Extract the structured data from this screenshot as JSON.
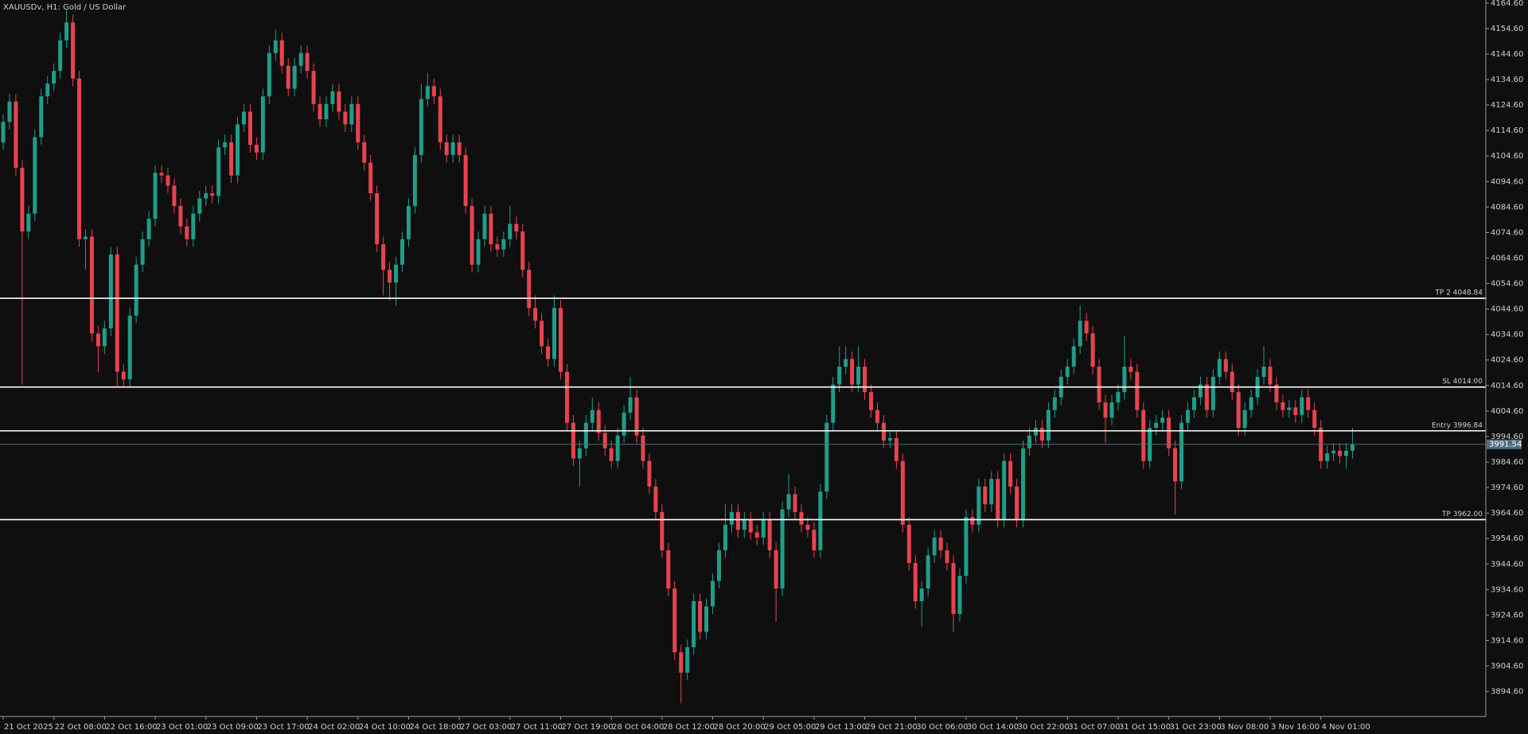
{
  "chart_data": {
    "type": "candlestick",
    "title": "XAUUSDv, H1:  Gold / US Dollar",
    "up_color": "#1f9e89",
    "down_color": "#e8434f",
    "level_color": "#ffffff",
    "last_price_color": "#4f6f7f",
    "ylim": [
      3884.8,
      4165.8
    ],
    "yticks": [
      {
        "value": 3894.6,
        "label": "3894.60"
      },
      {
        "value": 3904.6,
        "label": "3904.60"
      },
      {
        "value": 3914.6,
        "label": "3914.60"
      },
      {
        "value": 3924.6,
        "label": "3924.60"
      },
      {
        "value": 3934.6,
        "label": "3934.60"
      },
      {
        "value": 3944.6,
        "label": "3944.60"
      },
      {
        "value": 3954.6,
        "label": "3954.60"
      },
      {
        "value": 3964.6,
        "label": "3964.60"
      },
      {
        "value": 3974.6,
        "label": "3974.60"
      },
      {
        "value": 3984.6,
        "label": "3984.60"
      },
      {
        "value": 3994.6,
        "label": "3994.60"
      },
      {
        "value": 4004.6,
        "label": "4004.60"
      },
      {
        "value": 4014.6,
        "label": "4014.60"
      },
      {
        "value": 4024.6,
        "label": "4024.60"
      },
      {
        "value": 4034.6,
        "label": "4034.60"
      },
      {
        "value": 4044.6,
        "label": "4044.60"
      },
      {
        "value": 4054.6,
        "label": "4054.60"
      },
      {
        "value": 4064.6,
        "label": "4064.60"
      },
      {
        "value": 4074.6,
        "label": "4074.60"
      },
      {
        "value": 4084.6,
        "label": "4084.60"
      },
      {
        "value": 4094.6,
        "label": "4094.60"
      },
      {
        "value": 4104.6,
        "label": "4104.60"
      },
      {
        "value": 4114.6,
        "label": "4114.60"
      },
      {
        "value": 4124.6,
        "label": "4124.60"
      },
      {
        "value": 4134.6,
        "label": "4134.60"
      },
      {
        "value": 4144.6,
        "label": "4144.60"
      },
      {
        "value": 4154.6,
        "label": "4154.60"
      },
      {
        "value": 4164.6,
        "label": "4164.60"
      }
    ],
    "levels": [
      {
        "label": "TP 2 4048.84",
        "value": 4048.84
      },
      {
        "label": "SL 4014.00",
        "value": 4014.0
      },
      {
        "label": "Entry 3996.84",
        "value": 3996.84
      },
      {
        "label": "TP 3962.00",
        "value": 3962.0
      }
    ],
    "last_price": 3991.54,
    "categories": [
      "21 Oct 2025",
      null,
      null,
      null,
      null,
      null,
      null,
      null,
      "22 Oct 08:00",
      null,
      null,
      null,
      null,
      null,
      null,
      null,
      "22 Oct 16:00",
      null,
      null,
      null,
      null,
      null,
      null,
      null,
      "23 Oct 01:00",
      null,
      null,
      null,
      null,
      null,
      null,
      null,
      "23 Oct 09:00",
      null,
      null,
      null,
      null,
      null,
      null,
      null,
      "23 Oct 17:00",
      null,
      null,
      null,
      null,
      null,
      null,
      null,
      "24 Oct 02:00",
      null,
      null,
      null,
      null,
      null,
      null,
      null,
      "24 Oct 10:00",
      null,
      null,
      null,
      null,
      null,
      null,
      null,
      "24 Oct 18:00",
      null,
      null,
      null,
      null,
      null,
      null,
      null,
      "27 Oct 03:00",
      null,
      null,
      null,
      null,
      null,
      null,
      null,
      "27 Oct 11:00",
      null,
      null,
      null,
      null,
      null,
      null,
      null,
      "27 Oct 19:00",
      null,
      null,
      null,
      null,
      null,
      null,
      null,
      "28 Oct 04:00",
      null,
      null,
      null,
      null,
      null,
      null,
      null,
      "28 Oct 12:00",
      null,
      null,
      null,
      null,
      null,
      null,
      null,
      "28 Oct 20:00",
      null,
      null,
      null,
      null,
      null,
      null,
      null,
      "29 Oct 05:00",
      null,
      null,
      null,
      null,
      null,
      null,
      null,
      "29 Oct 13:00",
      null,
      null,
      null,
      null,
      null,
      null,
      null,
      "29 Oct 21:00",
      null,
      null,
      null,
      null,
      null,
      null,
      null,
      "30 Oct 06:00",
      null,
      null,
      null,
      null,
      null,
      null,
      null,
      "30 Oct 14:00",
      null,
      null,
      null,
      null,
      null,
      null,
      null,
      "30 Oct 22:00",
      null,
      null,
      null,
      null,
      null,
      null,
      null,
      "31 Oct 07:00",
      null,
      null,
      null,
      null,
      null,
      null,
      null,
      "31 Oct 15:00",
      null,
      null,
      null,
      null,
      null,
      null,
      null,
      "31 Oct 23:00",
      null,
      null,
      null,
      null,
      null,
      null,
      null,
      "3 Nov 08:00",
      null,
      null,
      null,
      null,
      null,
      null,
      null,
      "3 Nov 16:00",
      null,
      null,
      null,
      null,
      null,
      null,
      null,
      "4 Nov 01:00",
      null,
      null,
      null,
      null,
      null
    ],
    "open": [
      4110,
      4118,
      4126,
      4100,
      4075,
      4082,
      4112,
      4128,
      4133,
      4138,
      4150,
      4157,
      4135,
      4072,
      4073,
      4035,
      4030,
      4037,
      4066,
      4020,
      4017,
      4042,
      4062,
      4072,
      4080,
      4098,
      4097,
      4093,
      4085,
      4077,
      4072,
      4082,
      4088,
      4090,
      4089,
      4108,
      4110,
      4097,
      4117,
      4122,
      4109,
      4106,
      4128,
      4145,
      4150,
      4140,
      4131,
      4140,
      4145,
      4138,
      4125,
      4119,
      4125,
      4130,
      4122,
      4117,
      4125,
      4110,
      4102,
      4090,
      4070,
      4060,
      4055,
      4062,
      4072,
      4085,
      4105,
      4127,
      4132,
      4128,
      4110,
      4105,
      4110,
      4105,
      4085,
      4062,
      4072,
      4082,
      4070,
      4068,
      4072,
      4078,
      4075,
      4060,
      4045,
      4040,
      4030,
      4025,
      4045,
      4020,
      4000,
      3986,
      3990,
      4000,
      4005,
      3996,
      3990,
      3985,
      3995,
      4004,
      4010,
      3995,
      3985,
      3975,
      3965,
      3950,
      3935,
      3910,
      3902,
      3912,
      3930,
      3918,
      3928,
      3938,
      3950,
      3960,
      3965,
      3958,
      3962,
      3957,
      3955,
      3962,
      3950,
      3935,
      3966,
      3972,
      3965,
      3960,
      3958,
      3950,
      3973,
      4000,
      4015,
      4022,
      4025,
      4015,
      4022,
      4012,
      4005,
      4000,
      3993,
      3994,
      3985,
      3960,
      3945,
      3930,
      3935,
      3948,
      3955,
      3950,
      3945,
      3925,
      3940,
      3963,
      3960,
      3975,
      3968,
      3978,
      3962,
      3985,
      3975,
      3962,
      3990,
      3995,
      3998,
      3993,
      4005,
      4010,
      4018,
      4022,
      4030,
      4040,
      4035,
      4022,
      4008,
      4002,
      4008,
      4012,
      4022,
      4020,
      4005,
      3985,
      3998,
      4000,
      4002,
      3990,
      3977,
      4000,
      4005,
      4010,
      4015,
      4005,
      4018,
      4025,
      4020,
      4012,
      3998,
      4005,
      4010,
      4018,
      4022,
      4015,
      4008,
      4005,
      4006,
      4003,
      4010,
      4005,
      3998,
      3985,
      3988,
      3989,
      3987,
      3989
    ],
    "high": [
      4121,
      4129,
      4129,
      4103,
      4085,
      4115,
      4131,
      4136,
      4141,
      4153,
      4162,
      4160,
      4138,
      4076,
      4076,
      4038,
      4040,
      4069,
      4069,
      4023,
      4045,
      4065,
      4075,
      4083,
      4101,
      4101,
      4100,
      4096,
      4088,
      4080,
      4085,
      4091,
      4093,
      4093,
      4111,
      4113,
      4113,
      4120,
      4125,
      4125,
      4112,
      4131,
      4148,
      4154,
      4153,
      4143,
      4143,
      4148,
      4148,
      4141,
      4128,
      4128,
      4133,
      4133,
      4125,
      4128,
      4128,
      4113,
      4105,
      4093,
      4073,
      4063,
      4065,
      4075,
      4088,
      4108,
      4133,
      4137,
      4135,
      4131,
      4113,
      4113,
      4113,
      4108,
      4088,
      4075,
      4085,
      4085,
      4073,
      4075,
      4085,
      4081,
      4078,
      4063,
      4050,
      4043,
      4033,
      4050,
      4048,
      4023,
      4003,
      3993,
      4003,
      4010,
      4008,
      3999,
      3993,
      3998,
      4007,
      4018,
      4013,
      3998,
      3988,
      3978,
      3968,
      3953,
      3938,
      3913,
      3915,
      3933,
      3933,
      3931,
      3941,
      3953,
      3968,
      3968,
      3968,
      3965,
      3965,
      3960,
      3965,
      3965,
      3953,
      3969,
      3980,
      3975,
      3968,
      3963,
      3961,
      3976,
      4003,
      4018,
      4030,
      4030,
      4028,
      4030,
      4025,
      4015,
      4008,
      4003,
      3997,
      3997,
      3988,
      3963,
      3948,
      3938,
      3951,
      3958,
      3958,
      3953,
      3948,
      3943,
      3966,
      3966,
      3978,
      3978,
      3981,
      3981,
      3988,
      3988,
      3978,
      3993,
      3998,
      4001,
      4001,
      4008,
      4013,
      4021,
      4025,
      4033,
      4046,
      4043,
      4038,
      4025,
      4011,
      4011,
      4015,
      4034,
      4025,
      4023,
      4008,
      4001,
      4003,
      4005,
      4005,
      3993,
      4003,
      4008,
      4013,
      4018,
      4018,
      4021,
      4028,
      4028,
      4023,
      4015,
      4008,
      4013,
      4021,
      4030,
      4025,
      4018,
      4011,
      4009,
      4009,
      4013,
      4013,
      4008,
      4001,
      3991,
      3992,
      3992,
      3992,
      3998
    ],
    "low": [
      4107,
      4115,
      4097,
      4015,
      4072,
      4079,
      4109,
      4125,
      4130,
      4135,
      4147,
      4132,
      4069,
      4060,
      4032,
      4020,
      4027,
      4034,
      4014,
      4014,
      4014,
      4039,
      4059,
      4069,
      4077,
      4094,
      4090,
      4082,
      4074,
      4069,
      4069,
      4079,
      4085,
      4086,
      4086,
      4105,
      4094,
      4094,
      4114,
      4106,
      4103,
      4103,
      4125,
      4142,
      4137,
      4128,
      4128,
      4137,
      4135,
      4122,
      4116,
      4116,
      4122,
      4119,
      4114,
      4114,
      4107,
      4099,
      4087,
      4067,
      4050,
      4048,
      4046,
      4059,
      4069,
      4082,
      4102,
      4124,
      4125,
      4107,
      4102,
      4102,
      4102,
      4082,
      4059,
      4059,
      4069,
      4067,
      4065,
      4065,
      4069,
      4072,
      4057,
      4042,
      4037,
      4027,
      4022,
      4022,
      4017,
      3997,
      3983,
      3975,
      3987,
      3997,
      3993,
      3987,
      3982,
      3982,
      3992,
      4001,
      3992,
      3982,
      3972,
      3962,
      3947,
      3932,
      3907,
      3890,
      3899,
      3909,
      3915,
      3915,
      3925,
      3935,
      3947,
      3957,
      3955,
      3955,
      3954,
      3952,
      3952,
      3947,
      3922,
      3932,
      3963,
      3962,
      3957,
      3955,
      3947,
      3947,
      3970,
      3997,
      4012,
      4019,
      4012,
      4012,
      4009,
      4002,
      3997,
      3990,
      3990,
      3982,
      3957,
      3942,
      3927,
      3920,
      3932,
      3945,
      3947,
      3942,
      3918,
      3922,
      3937,
      3957,
      3957,
      3965,
      3965,
      3959,
      3959,
      3972,
      3959,
      3959,
      3987,
      3992,
      3990,
      3990,
      4002,
      4007,
      4015,
      4019,
      4027,
      4032,
      4019,
      4005,
      3992,
      3999,
      4005,
      4009,
      4017,
      4002,
      3982,
      3982,
      3995,
      3997,
      3987,
      3964,
      3974,
      3997,
      4002,
      4007,
      4002,
      4002,
      4015,
      4017,
      4009,
      3995,
      3995,
      4002,
      4007,
      4015,
      4012,
      4005,
      4002,
      4002,
      4000,
      4000,
      4002,
      3995,
      3982,
      3982,
      3985,
      3984,
      3982,
      3986
    ],
    "close": [
      4118,
      4126,
      4100,
      4075,
      4082,
      4112,
      4128,
      4133,
      4138,
      4150,
      4157,
      4135,
      4072,
      4073,
      4035,
      4030,
      4037,
      4066,
      4020,
      4017,
      4042,
      4062,
      4072,
      4080,
      4098,
      4097,
      4093,
      4085,
      4077,
      4072,
      4082,
      4088,
      4090,
      4089,
      4108,
      4110,
      4097,
      4117,
      4122,
      4109,
      4106,
      4128,
      4145,
      4150,
      4140,
      4131,
      4140,
      4145,
      4138,
      4125,
      4119,
      4125,
      4130,
      4122,
      4117,
      4125,
      4110,
      4102,
      4090,
      4070,
      4060,
      4055,
      4062,
      4072,
      4085,
      4105,
      4127,
      4132,
      4128,
      4110,
      4105,
      4110,
      4105,
      4085,
      4062,
      4072,
      4082,
      4070,
      4068,
      4072,
      4078,
      4075,
      4060,
      4045,
      4040,
      4030,
      4025,
      4045,
      4020,
      4000,
      3986,
      3990,
      4000,
      4005,
      3996,
      3990,
      3985,
      3995,
      4004,
      4010,
      3995,
      3985,
      3975,
      3965,
      3950,
      3935,
      3910,
      3902,
      3912,
      3930,
      3918,
      3928,
      3938,
      3950,
      3960,
      3965,
      3958,
      3962,
      3957,
      3955,
      3962,
      3950,
      3935,
      3966,
      3972,
      3965,
      3960,
      3958,
      3950,
      3973,
      4000,
      4015,
      4022,
      4025,
      4015,
      4022,
      4012,
      4005,
      4000,
      3993,
      3994,
      3985,
      3960,
      3945,
      3930,
      3935,
      3948,
      3955,
      3950,
      3945,
      3925,
      3940,
      3963,
      3960,
      3975,
      3968,
      3978,
      3962,
      3985,
      3975,
      3962,
      3990,
      3995,
      3998,
      3993,
      4005,
      4010,
      4018,
      4022,
      4030,
      4040,
      4035,
      4022,
      4008,
      4002,
      4008,
      4012,
      4022,
      4020,
      4005,
      3985,
      3998,
      4000,
      4002,
      3990,
      3977,
      4000,
      4005,
      4010,
      4015,
      4005,
      4018,
      4025,
      4020,
      4012,
      3998,
      4005,
      4010,
      4018,
      4022,
      4015,
      4008,
      4005,
      4006,
      4003,
      4010,
      4005,
      3998,
      3985,
      3988,
      3989,
      3987,
      3989,
      3991.54
    ]
  }
}
